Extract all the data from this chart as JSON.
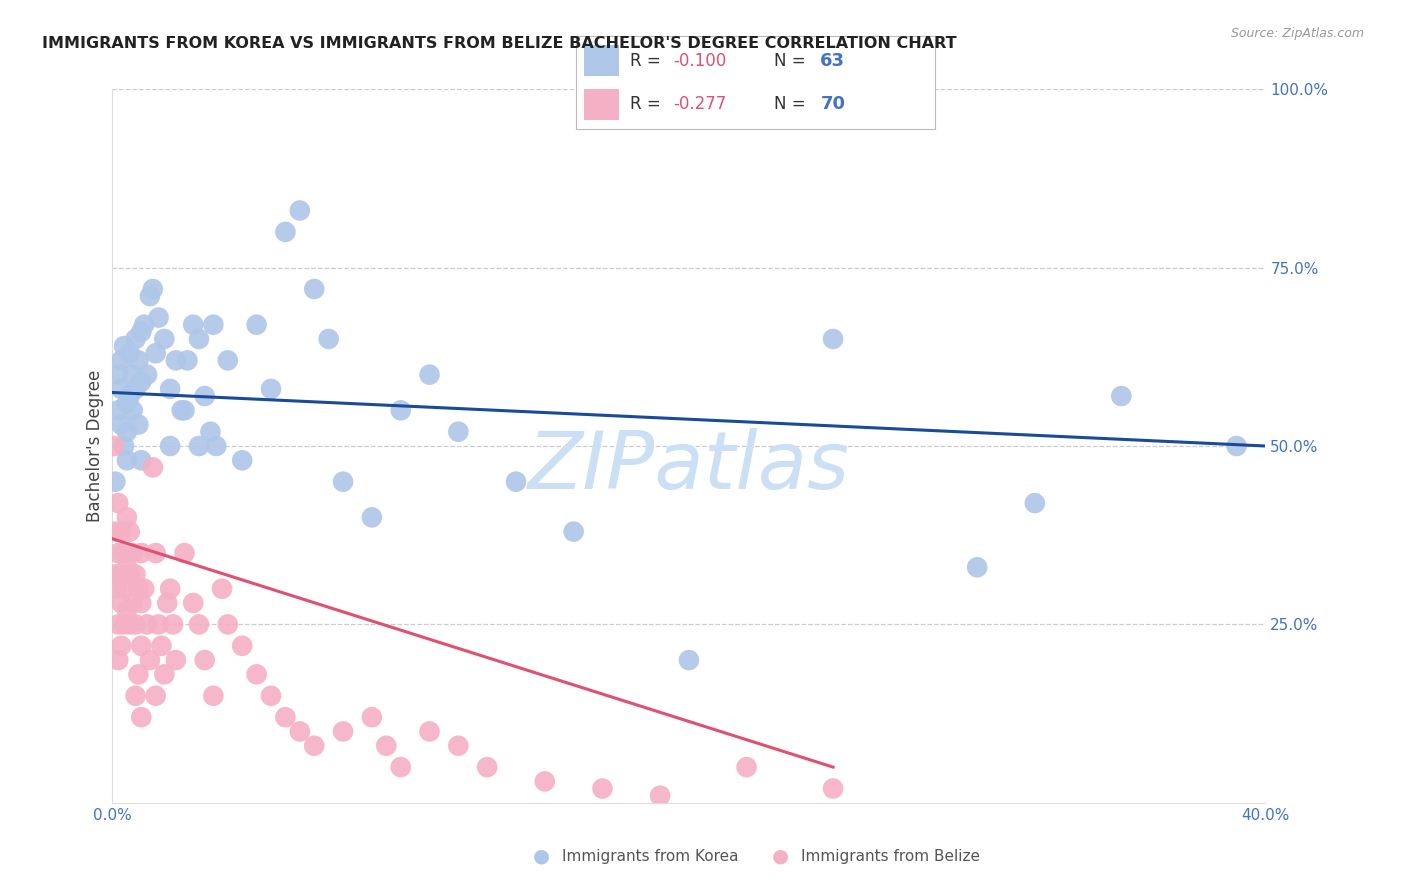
{
  "title": "IMMIGRANTS FROM KOREA VS IMMIGRANTS FROM BELIZE BACHELOR'S DEGREE CORRELATION CHART",
  "source": "Source: ZipAtlas.com",
  "ylabel": "Bachelor's Degree",
  "xlim": [
    0.0,
    0.4
  ],
  "ylim": [
    0.0,
    1.0
  ],
  "yticks": [
    0.0,
    0.25,
    0.5,
    0.75,
    1.0
  ],
  "ytick_labels": [
    "",
    "25.0%",
    "50.0%",
    "75.0%",
    "100.0%"
  ],
  "xticks": [
    0.0,
    0.08,
    0.16,
    0.24,
    0.32,
    0.4
  ],
  "xtick_labels": [
    "0.0%",
    "",
    "",
    "",
    "",
    "40.0%"
  ],
  "korea_color": "#aec6e8",
  "belize_color": "#f4b0c4",
  "korea_line_color": "#1a4a9a",
  "belize_line_color": "#e05070",
  "axis_color": "#4472c4",
  "grid_color": "#cccccc",
  "background_color": "#ffffff",
  "watermark": "ZIPatlas",
  "watermark_color": "#cce0f5",
  "legend_korea_label": "Immigrants from Korea",
  "legend_belize_label": "Immigrants from Belize",
  "korea_R": "-0.100",
  "korea_N": "63",
  "belize_R": "-0.277",
  "belize_N": "70",
  "korea_line_x0": 0.0,
  "korea_line_x1": 0.4,
  "korea_line_y0": 0.575,
  "korea_line_y1": 0.5,
  "belize_line_x0": 0.0,
  "belize_line_x1": 0.25,
  "belize_line_y0": 0.37,
  "belize_line_y1": 0.05,
  "korea_x": [
    0.001,
    0.002,
    0.002,
    0.003,
    0.003,
    0.003,
    0.004,
    0.004,
    0.005,
    0.005,
    0.005,
    0.006,
    0.006,
    0.007,
    0.007,
    0.008,
    0.008,
    0.009,
    0.009,
    0.01,
    0.01,
    0.011,
    0.012,
    0.013,
    0.014,
    0.016,
    0.018,
    0.02,
    0.022,
    0.024,
    0.026,
    0.028,
    0.03,
    0.032,
    0.034,
    0.036,
    0.04,
    0.045,
    0.05,
    0.055,
    0.06,
    0.065,
    0.07,
    0.075,
    0.08,
    0.09,
    0.1,
    0.11,
    0.12,
    0.14,
    0.16,
    0.2,
    0.25,
    0.3,
    0.32,
    0.35,
    0.39,
    0.01,
    0.015,
    0.02,
    0.025,
    0.03,
    0.035
  ],
  "korea_y": [
    0.45,
    0.6,
    0.55,
    0.58,
    0.62,
    0.53,
    0.5,
    0.64,
    0.56,
    0.52,
    0.48,
    0.63,
    0.57,
    0.6,
    0.55,
    0.65,
    0.58,
    0.62,
    0.53,
    0.66,
    0.59,
    0.67,
    0.6,
    0.71,
    0.72,
    0.68,
    0.65,
    0.5,
    0.62,
    0.55,
    0.62,
    0.67,
    0.65,
    0.57,
    0.52,
    0.5,
    0.62,
    0.48,
    0.67,
    0.58,
    0.8,
    0.83,
    0.72,
    0.65,
    0.45,
    0.4,
    0.55,
    0.6,
    0.52,
    0.45,
    0.38,
    0.2,
    0.65,
    0.33,
    0.42,
    0.57,
    0.5,
    0.48,
    0.63,
    0.58,
    0.55,
    0.5,
    0.67
  ],
  "belize_x": [
    0.0005,
    0.001,
    0.001,
    0.0015,
    0.002,
    0.002,
    0.002,
    0.002,
    0.003,
    0.003,
    0.003,
    0.003,
    0.004,
    0.004,
    0.004,
    0.005,
    0.005,
    0.005,
    0.006,
    0.006,
    0.006,
    0.007,
    0.007,
    0.008,
    0.008,
    0.009,
    0.01,
    0.01,
    0.01,
    0.011,
    0.012,
    0.013,
    0.014,
    0.015,
    0.015,
    0.016,
    0.017,
    0.018,
    0.019,
    0.02,
    0.021,
    0.022,
    0.025,
    0.028,
    0.03,
    0.032,
    0.035,
    0.038,
    0.04,
    0.045,
    0.05,
    0.055,
    0.06,
    0.065,
    0.07,
    0.08,
    0.09,
    0.095,
    0.1,
    0.11,
    0.12,
    0.13,
    0.15,
    0.17,
    0.19,
    0.22,
    0.25,
    0.008,
    0.009,
    0.01
  ],
  "belize_y": [
    0.5,
    0.38,
    0.32,
    0.3,
    0.35,
    0.42,
    0.25,
    0.2,
    0.38,
    0.32,
    0.28,
    0.22,
    0.35,
    0.3,
    0.25,
    0.4,
    0.33,
    0.27,
    0.38,
    0.32,
    0.25,
    0.35,
    0.28,
    0.32,
    0.25,
    0.3,
    0.35,
    0.28,
    0.22,
    0.3,
    0.25,
    0.2,
    0.47,
    0.35,
    0.15,
    0.25,
    0.22,
    0.18,
    0.28,
    0.3,
    0.25,
    0.2,
    0.35,
    0.28,
    0.25,
    0.2,
    0.15,
    0.3,
    0.25,
    0.22,
    0.18,
    0.15,
    0.12,
    0.1,
    0.08,
    0.1,
    0.12,
    0.08,
    0.05,
    0.1,
    0.08,
    0.05,
    0.03,
    0.02,
    0.01,
    0.05,
    0.02,
    0.15,
    0.18,
    0.12
  ]
}
